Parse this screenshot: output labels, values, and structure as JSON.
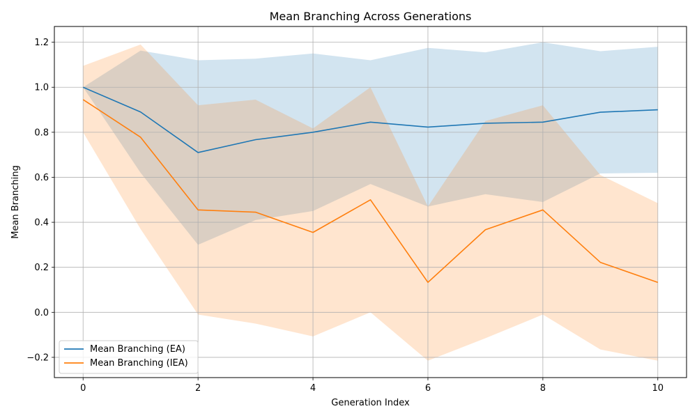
{
  "chart_data": {
    "type": "line",
    "title": "Mean Branching Across Generations",
    "xlabel": "Generation Index",
    "ylabel": "Mean Branching",
    "x": [
      0,
      1,
      2,
      3,
      4,
      5,
      6,
      7,
      8,
      9,
      10
    ],
    "xlim": [
      -0.5,
      10.5
    ],
    "ylim": [
      -0.29,
      1.27
    ],
    "xticks": [
      0,
      2,
      4,
      6,
      8,
      10
    ],
    "xtick_labels": [
      "0",
      "2",
      "4",
      "6",
      "8",
      "10"
    ],
    "yticks": [
      -0.2,
      0.0,
      0.2,
      0.4,
      0.6,
      0.8,
      1.0,
      1.2
    ],
    "ytick_labels": [
      "−0.2",
      "0.0",
      "0.2",
      "0.4",
      "0.6",
      "0.8",
      "1.0",
      "1.2"
    ],
    "grid": true,
    "legend_position": "lower-left",
    "series": [
      {
        "name": "Mean Branching (EA)",
        "color": "#1f77b4",
        "values": [
          1.0,
          0.89,
          0.71,
          0.767,
          0.8,
          0.845,
          0.823,
          0.84,
          0.845,
          0.889,
          0.9
        ],
        "lower": [
          1.0,
          0.62,
          0.3,
          0.41,
          0.45,
          0.57,
          0.47,
          0.525,
          0.49,
          0.617,
          0.62
        ],
        "upper": [
          1.0,
          1.163,
          1.12,
          1.127,
          1.15,
          1.12,
          1.175,
          1.155,
          1.2,
          1.16,
          1.18
        ]
      },
      {
        "name": "Mean Branching (IEA)",
        "color": "#ff7f0e",
        "values": [
          0.945,
          0.778,
          0.455,
          0.445,
          0.355,
          0.5,
          0.133,
          0.367,
          0.455,
          0.222,
          0.133
        ],
        "lower": [
          0.8,
          0.37,
          -0.01,
          -0.05,
          -0.107,
          0.0,
          -0.215,
          -0.115,
          -0.01,
          -0.165,
          -0.215
        ],
        "upper": [
          1.095,
          1.19,
          0.92,
          0.945,
          0.817,
          1.0,
          0.47,
          0.85,
          0.92,
          0.61,
          0.485
        ]
      }
    ]
  }
}
